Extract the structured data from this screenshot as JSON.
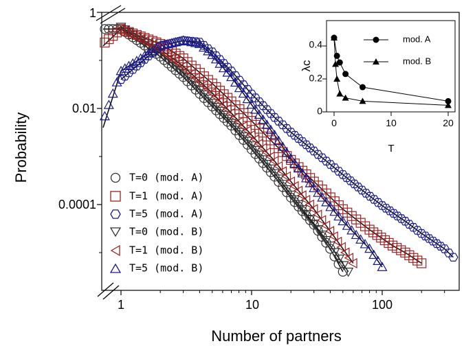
{
  "chart_data": [
    {
      "type": "scatter",
      "xlabel": "Number of partners",
      "ylabel": "Probability",
      "xscale": "log",
      "yscale": "log",
      "xlim": [
        0.7,
        400
      ],
      "ylim": [
        1.5e-06,
        1
      ],
      "x_ticks": [
        "1",
        "10",
        "100"
      ],
      "y_ticks": [
        "1",
        "0.01",
        "0.0001"
      ],
      "grid": false,
      "legend_position": "bottom-left",
      "series": [
        {
          "name": "T=0 (mod. A)",
          "marker": "circle",
          "color": "#333333",
          "x": [
            0.7,
            1,
            2,
            3,
            5,
            7,
            10,
            15,
            20,
            30,
            40,
            50
          ],
          "y": [
            0.45,
            0.45,
            0.12,
            0.045,
            0.011,
            0.0044,
            0.0014,
            0.00038,
            0.00014,
            3.8e-05,
            1.2e-05,
            4e-06
          ]
        },
        {
          "name": "T=1 (mod. A)",
          "marker": "square",
          "color": "#a02020",
          "x": [
            0.7,
            1,
            2,
            3,
            5,
            7,
            10,
            15,
            20,
            30,
            50,
            80,
            120,
            150,
            200
          ],
          "y": [
            0.2,
            0.45,
            0.22,
            0.11,
            0.033,
            0.014,
            0.0055,
            0.0018,
            0.00085,
            0.0003,
            8e-05,
            3e-05,
            1.4e-05,
            1e-05,
            6e-06
          ]
        },
        {
          "name": "T=5 (mod. A)",
          "marker": "hexagon",
          "color": "#1a1a8c",
          "x": [
            1,
            2,
            3,
            4,
            5,
            7,
            10,
            15,
            20,
            30,
            50,
            70,
            100,
            150,
            200,
            300,
            350
          ],
          "y": [
            0.04,
            0.2,
            0.26,
            0.24,
            0.15,
            0.06,
            0.02,
            0.0065,
            0.0032,
            0.0013,
            0.00042,
            0.0002,
            9.5e-05,
            4.5e-05,
            2.5e-05,
            1.2e-05,
            8e-06
          ]
        },
        {
          "name": "T=0 (mod. B)",
          "marker": "triangle-down",
          "color": "#333333",
          "x": [
            1,
            2,
            3,
            5,
            7,
            10,
            15,
            20,
            30,
            40,
            55
          ],
          "y": [
            0.5,
            0.14,
            0.055,
            0.013,
            0.005,
            0.0017,
            0.00045,
            0.00016,
            4e-05,
            1.4e-05,
            4e-06
          ]
        },
        {
          "name": "T=1 (mod. B)",
          "marker": "triangle-left",
          "color": "#a02020",
          "x": [
            1,
            2,
            3,
            5,
            7,
            10,
            15,
            20,
            30,
            40,
            60
          ],
          "y": [
            0.45,
            0.17,
            0.075,
            0.021,
            0.008,
            0.0028,
            0.0008,
            0.0003,
            8e-05,
            2.8e-05,
            6e-06
          ]
        },
        {
          "name": "T=5 (mod. B)",
          "marker": "triangle-up",
          "color": "#1a1a8c",
          "x": [
            0.7,
            1,
            2,
            3,
            4,
            5,
            7,
            10,
            15,
            20,
            30,
            50,
            80,
            100
          ],
          "y": [
            0.004,
            0.06,
            0.2,
            0.26,
            0.22,
            0.13,
            0.045,
            0.012,
            0.0028,
            0.0009,
            0.00022,
            4.5e-05,
            1.2e-05,
            5e-06
          ]
        }
      ]
    },
    {
      "type": "line",
      "xlabel": "T",
      "ylabel": "λc",
      "xlim": [
        -1,
        21
      ],
      "ylim": [
        0,
        0.5
      ],
      "x_ticks": [
        "0",
        "10",
        "20"
      ],
      "y_ticks": [
        "0",
        "0.2",
        "0.4"
      ],
      "legend_position": "top-right",
      "series": [
        {
          "name": "mod. A",
          "marker": "circle",
          "x": [
            0,
            0.5,
            1,
            2,
            5,
            20
          ],
          "y": [
            0.45,
            0.34,
            0.3,
            0.23,
            0.15,
            0.065
          ]
        },
        {
          "name": "mod. B",
          "marker": "triangle-up",
          "x": [
            0,
            0.25,
            0.5,
            1,
            2,
            5,
            20
          ],
          "y": [
            0.45,
            0.29,
            0.2,
            0.11,
            0.085,
            0.065,
            0.04
          ]
        }
      ]
    }
  ]
}
